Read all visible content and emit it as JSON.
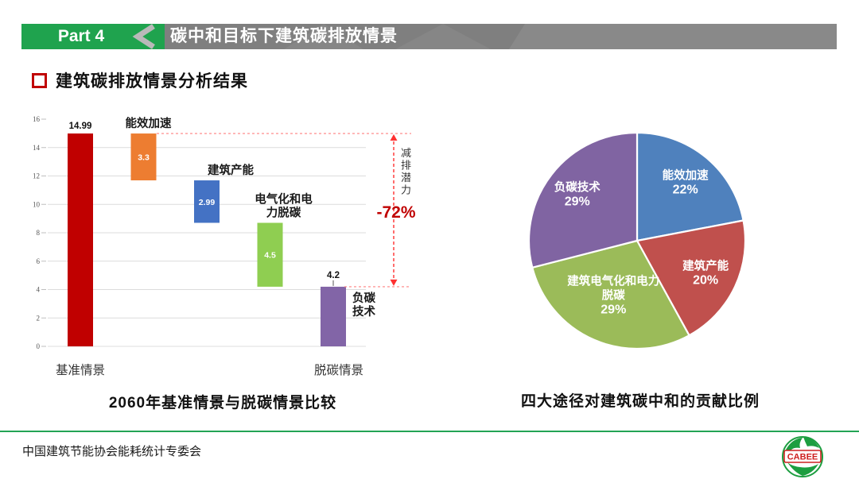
{
  "header": {
    "part_label": "Part 4",
    "title": "碳中和目标下建筑碳排放情景",
    "accent_green": "#1fa34e",
    "band_gray": "#7f7f7f"
  },
  "section": {
    "title": "建筑碳排放情景分析结果",
    "bullet_color": "#c00000"
  },
  "chart_data": [
    {
      "id": "waterfall",
      "type": "bar",
      "subtype": "waterfall",
      "title": "2060年基准情景与脱碳情景比较",
      "ylim": [
        0,
        16
      ],
      "yticks": [
        0,
        2,
        4,
        6,
        8,
        10,
        12,
        14,
        16
      ],
      "grid": true,
      "bars": [
        {
          "name": "基准情景",
          "from": 0,
          "to": 14.99,
          "value": 14.99,
          "color": "#c00000",
          "value_label": "14.99",
          "value_label_pos": "above",
          "axis_label": "基准情景"
        },
        {
          "name": "能效加速",
          "from": 11.69,
          "to": 14.99,
          "value": 3.3,
          "color": "#ed7d31",
          "value_label": "3.3",
          "value_label_pos": "inside",
          "category_label": [
            "能效加速"
          ],
          "category_dx": 6
        },
        {
          "name": "建筑产能",
          "from": 8.7,
          "to": 11.69,
          "value": 2.99,
          "color": "#4472c4",
          "value_label": "2.99",
          "value_label_pos": "inside",
          "category_label": [
            "建筑产能"
          ],
          "category_dx": 30
        },
        {
          "name": "电气化和电力脱碳",
          "from": 4.2,
          "to": 8.7,
          "value": 4.5,
          "color": "#8fce51",
          "value_label": "4.5",
          "value_label_pos": "inside",
          "category_label": [
            "电气化和电",
            "力脱碳"
          ],
          "category_dx": 17
        },
        {
          "name": "脱碳情景",
          "from": 0,
          "to": 4.2,
          "value": 4.2,
          "color": "#8265a7",
          "value_label": "4.2",
          "value_label_pos": "above",
          "connector": true,
          "side_label": [
            "负碳",
            "技术"
          ],
          "axis_label": "脱碳情景",
          "axis_dx": 7
        }
      ],
      "annotation": {
        "top_value": 14.99,
        "bottom_value": 4.2,
        "label_chars": [
          "减",
          "排",
          "潜",
          "力"
        ],
        "value_text": "-72%",
        "value_color": "#c00000",
        "dash_color": "#ff8080",
        "arrow_color": "#ff3030"
      }
    },
    {
      "id": "pie",
      "type": "pie",
      "title": "四大途径对建筑碳中和的贡献比例",
      "start_angle_deg": 0,
      "direction": "clockwise",
      "slices": [
        {
          "label": "能效加速",
          "pct": 22,
          "color": "#4f81bd",
          "label_lines": [
            "能效加速",
            "22%"
          ],
          "label_r_frac": 0.7
        },
        {
          "label": "建筑产能",
          "pct": 20,
          "color": "#c0504d",
          "label_lines": [
            "建筑产能",
            "20%"
          ],
          "label_r_frac": 0.7
        },
        {
          "label": "建筑电气化和电力脱碳",
          "pct": 29,
          "color": "#9bbb59",
          "label_lines": [
            "建筑电气化和电力",
            "脱碳",
            "29%"
          ],
          "label_r_frac": 0.55
        },
        {
          "label": "负碳技术",
          "pct": 29,
          "color": "#8064a2",
          "label_lines": [
            "负碳技术",
            "29%"
          ],
          "label_r_frac": 0.7
        }
      ]
    }
  ],
  "footer": {
    "org": "中国建筑节能协会能耗统计专委会",
    "logo_text": "CABEE"
  }
}
